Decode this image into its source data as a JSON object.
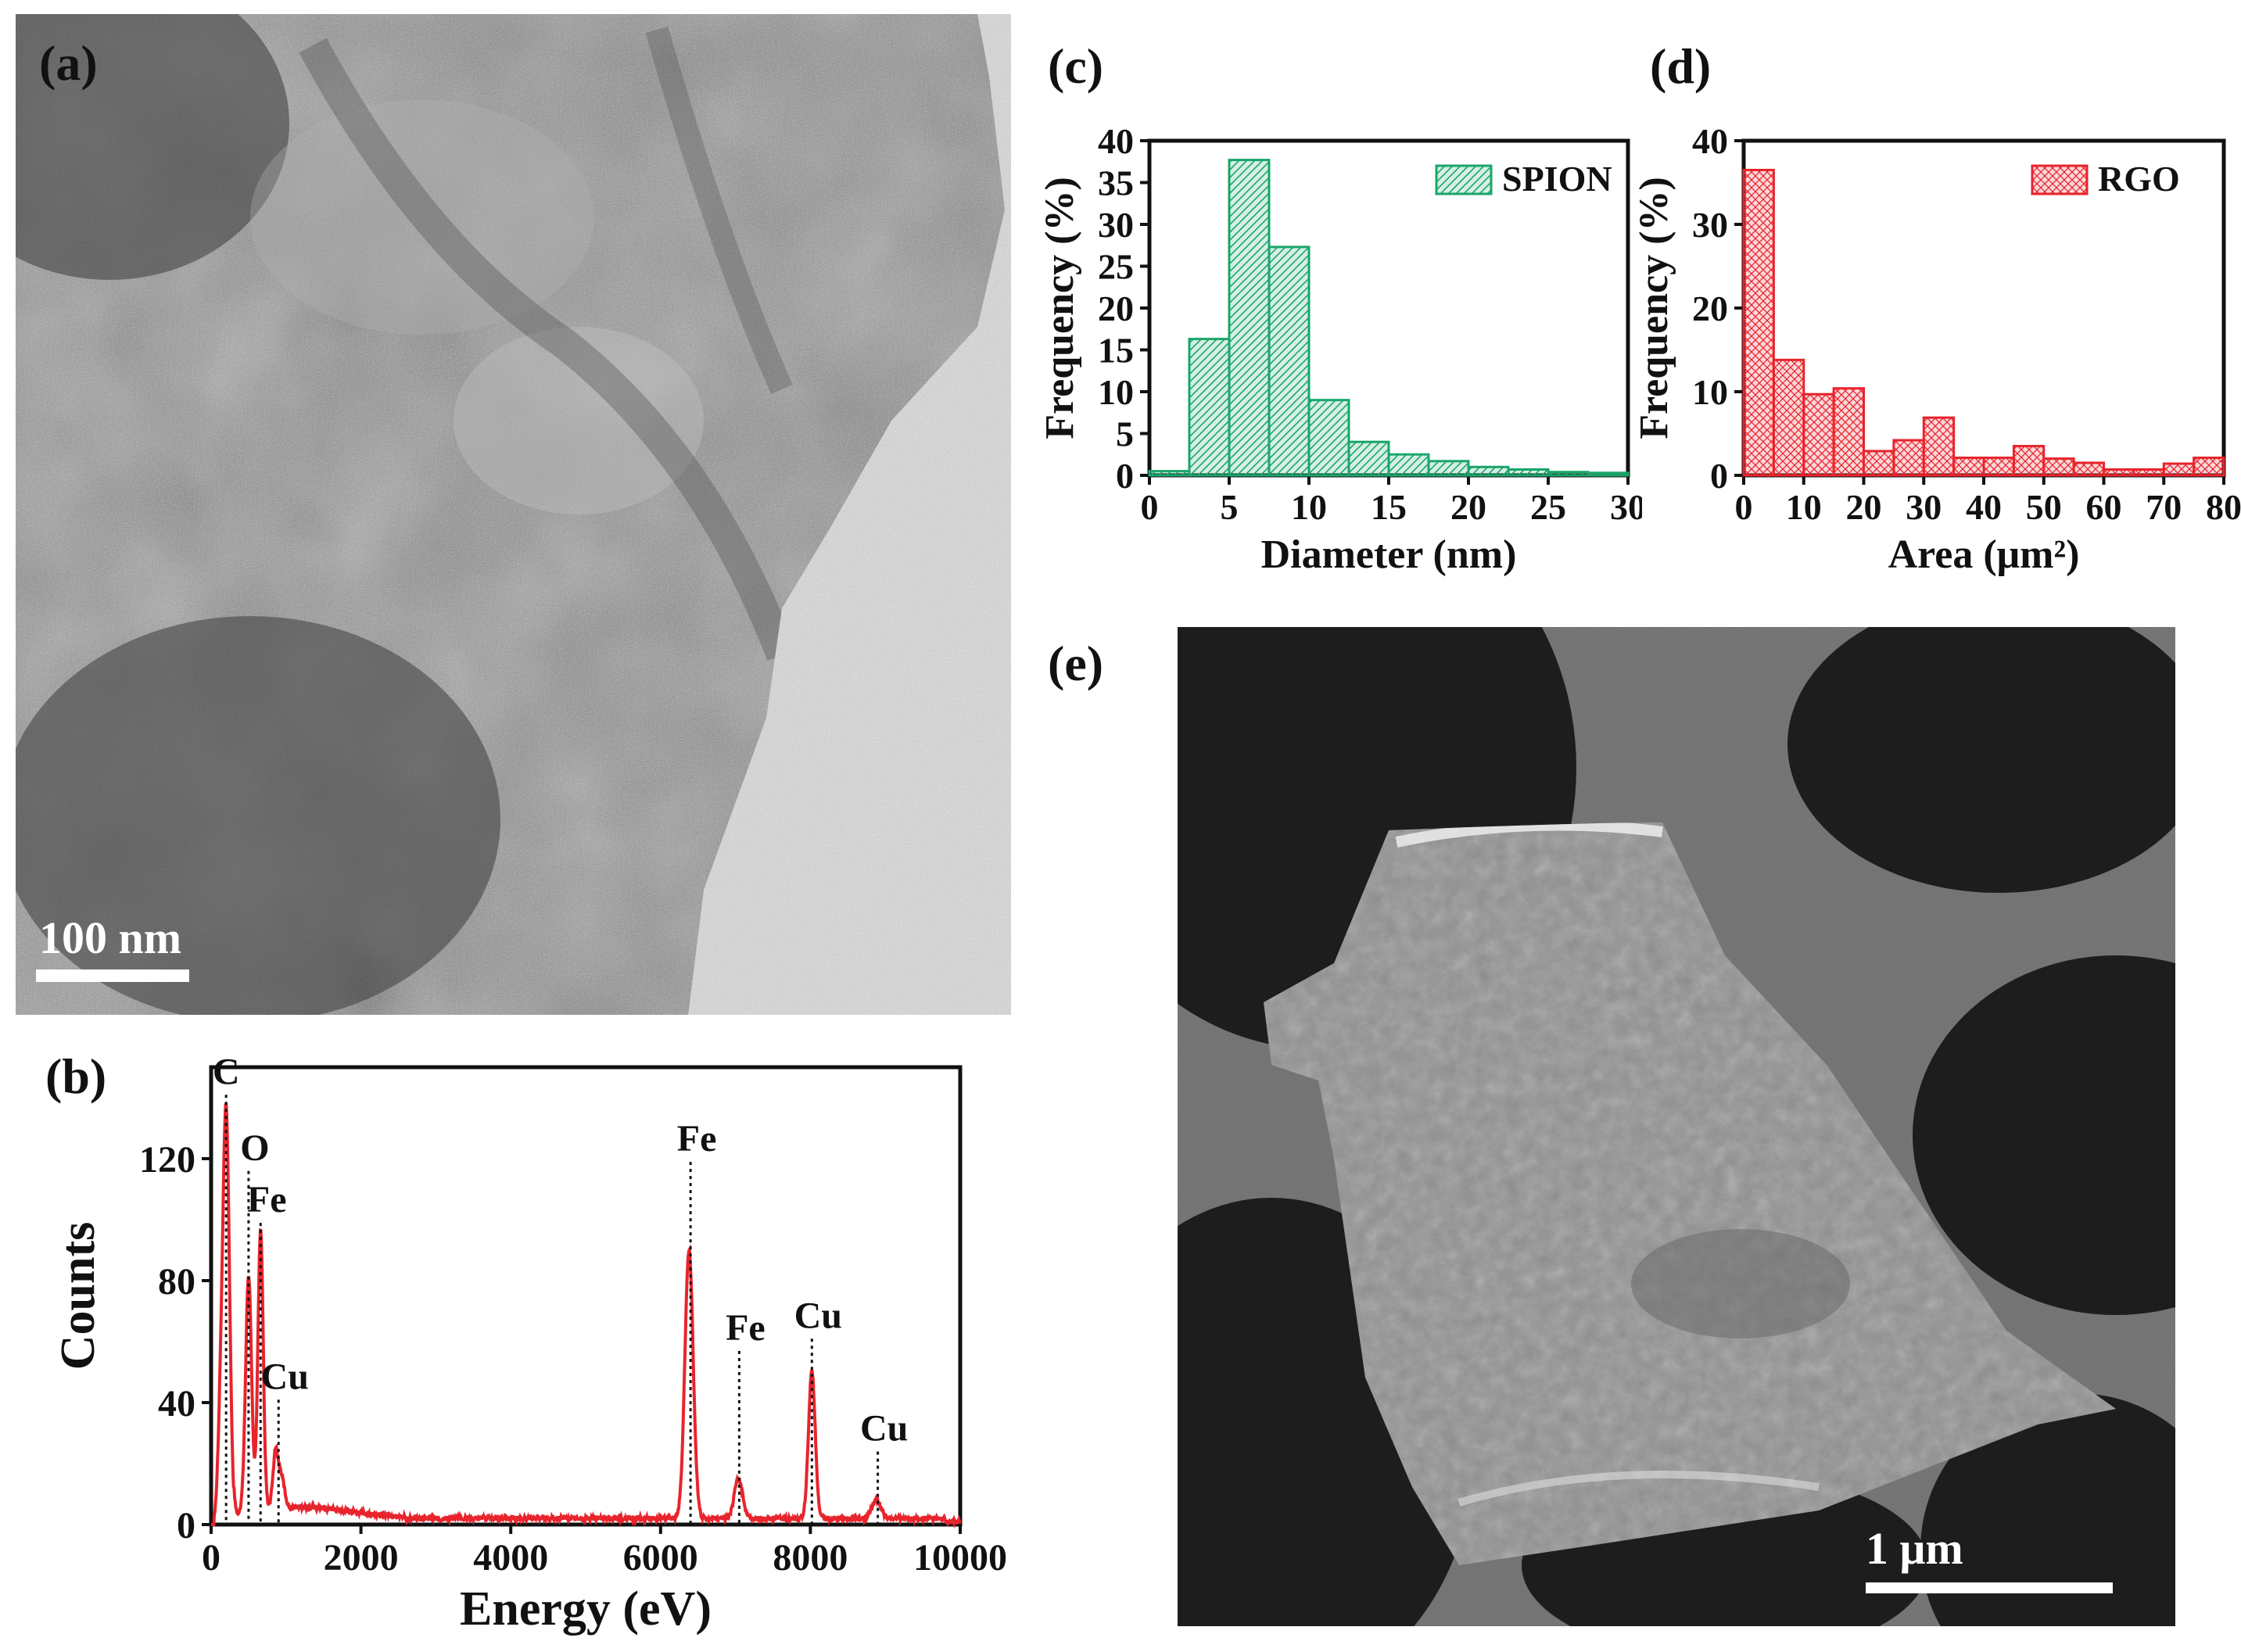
{
  "panels": {
    "a": {
      "label": "(a)",
      "scale_bar": "100 nm"
    },
    "b": {
      "label": "(b)"
    },
    "c": {
      "label": "(c)"
    },
    "d": {
      "label": "(d)"
    },
    "e": {
      "label": "(e)",
      "scale_bar": "1 μm"
    }
  },
  "colors": {
    "spion": "#1aa66a",
    "rgo": "#e8242c",
    "eds": "#e8242c",
    "axis": "#111111"
  },
  "chart_data": [
    {
      "id": "b",
      "type": "line",
      "title": "",
      "xlabel": "Energy (eV)",
      "ylabel": "Counts",
      "xlim": [
        0,
        10000
      ],
      "ylim": [
        0,
        150
      ],
      "xticks": [
        0,
        2000,
        4000,
        6000,
        8000,
        10000
      ],
      "yticks": [
        0,
        40,
        80,
        120
      ],
      "peaks": [
        {
          "x": 200,
          "y": 135,
          "w": 45
        },
        {
          "x": 120,
          "y": 24,
          "w": 35
        },
        {
          "x": 500,
          "y": 77,
          "w": 40
        },
        {
          "x": 660,
          "y": 92,
          "w": 35
        },
        {
          "x": 860,
          "y": 18,
          "w": 35
        },
        {
          "x": 940,
          "y": 10,
          "w": 40
        },
        {
          "x": 6380,
          "y": 88,
          "w": 55
        },
        {
          "x": 7040,
          "y": 13,
          "w": 55
        },
        {
          "x": 8020,
          "y": 48,
          "w": 45
        },
        {
          "x": 8880,
          "y": 6,
          "w": 60
        }
      ],
      "annotations": [
        {
          "text": "C",
          "x": 200,
          "y": 135,
          "label_y": 143
        },
        {
          "text": "O",
          "x": 500,
          "y": 77,
          "label_y": 118
        },
        {
          "text": "Fe",
          "x": 660,
          "y": 92,
          "label_y": 101
        },
        {
          "text": "Cu",
          "x": 900,
          "y": 18,
          "label_y": 43
        },
        {
          "text": "Fe",
          "x": 6400,
          "y": 88,
          "label_y": 121
        },
        {
          "text": "Fe",
          "x": 7050,
          "y": 13,
          "label_y": 59
        },
        {
          "text": "Cu",
          "x": 8020,
          "y": 48,
          "label_y": 63
        },
        {
          "text": "Cu",
          "x": 8900,
          "y": 6,
          "label_y": 26
        }
      ]
    },
    {
      "id": "c",
      "type": "bar",
      "title": "",
      "xlabel": "Diameter (nm)",
      "ylabel": "Frequency (%)",
      "xlim": [
        0,
        30
      ],
      "ylim": [
        0,
        40
      ],
      "xticks": [
        0,
        5,
        10,
        15,
        20,
        25,
        30
      ],
      "yticks": [
        0,
        5,
        10,
        15,
        20,
        25,
        30,
        35,
        40
      ],
      "bin_edges": [
        0,
        2.5,
        5,
        7.5,
        10,
        12.5,
        15,
        17.5,
        20,
        22.5,
        25,
        27.5,
        30
      ],
      "series": [
        {
          "name": "SPION",
          "values": [
            0.5,
            16.3,
            37.7,
            27.3,
            9.0,
            4.0,
            2.5,
            1.7,
            1.0,
            0.7,
            0.4,
            0.3
          ]
        }
      ],
      "legend": "top-right"
    },
    {
      "id": "d",
      "type": "bar",
      "title": "",
      "xlabel": "Area (μm²)",
      "ylabel": "Frequency (%)",
      "xlim": [
        0,
        80
      ],
      "ylim": [
        0,
        40
      ],
      "xticks": [
        0,
        10,
        20,
        30,
        40,
        50,
        60,
        70,
        80
      ],
      "yticks": [
        0,
        10,
        20,
        30,
        40
      ],
      "bin_edges": [
        0,
        5,
        10,
        15,
        20,
        25,
        30,
        35,
        40,
        45,
        50,
        55,
        60,
        65,
        70,
        75,
        80
      ],
      "series": [
        {
          "name": "RGO",
          "values": [
            36.5,
            13.8,
            9.7,
            10.4,
            2.9,
            4.2,
            6.9,
            2.1,
            2.1,
            3.5,
            2.0,
            1.5,
            0.7,
            0.7,
            1.4,
            2.1
          ]
        }
      ],
      "legend": "top-right"
    }
  ]
}
